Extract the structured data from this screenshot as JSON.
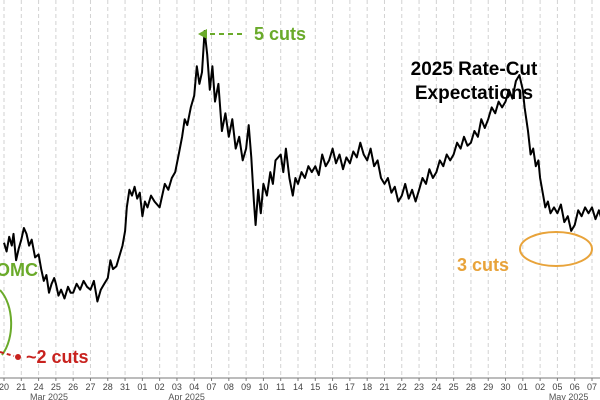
{
  "chart_data": {
    "type": "line",
    "title": [
      "2025 Rate-Cut",
      "Expectations"
    ],
    "xlabel": "",
    "ylabel": "",
    "grid": true,
    "legend": "none",
    "colors": {
      "line": "#000000",
      "green": "#6aaa2a",
      "red": "#c8221e",
      "orange": "#e8a33a",
      "grid": "#d2d2d2"
    },
    "x_tick_labels": [
      "20",
      "21",
      "24",
      "25",
      "26",
      "27",
      "28",
      "31",
      "01",
      "02",
      "03",
      "04",
      "07",
      "08",
      "09",
      "10",
      "11",
      "14",
      "15",
      "16",
      "17",
      "18",
      "21",
      "22",
      "23",
      "24",
      "25",
      "28",
      "29",
      "30",
      "01",
      "02",
      "05",
      "06",
      "07"
    ],
    "months": [
      {
        "label": "Mar 2025",
        "tick_index": 0
      },
      {
        "label": "Apr 2025",
        "tick_index": 8
      },
      {
        "label": "May 2025",
        "tick_index": 30
      }
    ],
    "annotations": [
      {
        "text": "5 cuts",
        "color": "green",
        "arrow": "left"
      },
      {
        "text": "OMC",
        "color": "green"
      },
      {
        "text": "~2 cuts",
        "color": "red"
      },
      {
        "text": "3 cuts",
        "color": "orange"
      }
    ],
    "ylim": [
      0,
      100
    ],
    "series": [
      {
        "values": [
          [
            0.0,
            28
          ],
          [
            0.15,
            25
          ],
          [
            0.3,
            30
          ],
          [
            0.45,
            27
          ],
          [
            0.55,
            31
          ],
          [
            0.7,
            22
          ],
          [
            0.85,
            26
          ],
          [
            1.0,
            29
          ],
          [
            1.15,
            33
          ],
          [
            1.3,
            31
          ],
          [
            1.45,
            27
          ],
          [
            1.6,
            29
          ],
          [
            1.8,
            23
          ],
          [
            2.0,
            24
          ],
          [
            2.15,
            19
          ],
          [
            2.3,
            15
          ],
          [
            2.45,
            17
          ],
          [
            2.6,
            11
          ],
          [
            2.75,
            14
          ],
          [
            2.9,
            16
          ],
          [
            3.0,
            14
          ],
          [
            3.15,
            10
          ],
          [
            3.3,
            12
          ],
          [
            3.5,
            9
          ],
          [
            3.7,
            13
          ],
          [
            3.85,
            11
          ],
          [
            4.0,
            11
          ],
          [
            4.2,
            14
          ],
          [
            4.4,
            12
          ],
          [
            4.6,
            15
          ],
          [
            4.8,
            13
          ],
          [
            5.0,
            12
          ],
          [
            5.2,
            15
          ],
          [
            5.4,
            8
          ],
          [
            5.6,
            12
          ],
          [
            5.8,
            14
          ],
          [
            6.0,
            16
          ],
          [
            6.15,
            22
          ],
          [
            6.3,
            19
          ],
          [
            6.5,
            20
          ],
          [
            6.7,
            24
          ],
          [
            6.85,
            27
          ],
          [
            7.0,
            32
          ],
          [
            7.1,
            40
          ],
          [
            7.25,
            46
          ],
          [
            7.4,
            44
          ],
          [
            7.55,
            47
          ],
          [
            7.7,
            43
          ],
          [
            7.85,
            45
          ],
          [
            8.0,
            37
          ],
          [
            8.15,
            42
          ],
          [
            8.3,
            40
          ],
          [
            8.5,
            44
          ],
          [
            8.7,
            42
          ],
          [
            9.0,
            40
          ],
          [
            9.15,
            44
          ],
          [
            9.3,
            48
          ],
          [
            9.5,
            46
          ],
          [
            9.7,
            50
          ],
          [
            9.9,
            52
          ],
          [
            10.1,
            58
          ],
          [
            10.3,
            64
          ],
          [
            10.45,
            70
          ],
          [
            10.6,
            68
          ],
          [
            10.8,
            74
          ],
          [
            11.0,
            78
          ],
          [
            11.15,
            88
          ],
          [
            11.3,
            82
          ],
          [
            11.45,
            86
          ],
          [
            11.6,
            100
          ],
          [
            11.75,
            92
          ],
          [
            11.9,
            80
          ],
          [
            12.05,
            88
          ],
          [
            12.2,
            76
          ],
          [
            12.4,
            82
          ],
          [
            12.6,
            66
          ],
          [
            12.8,
            72
          ],
          [
            13.0,
            64
          ],
          [
            13.2,
            70
          ],
          [
            13.4,
            60
          ],
          [
            13.6,
            64
          ],
          [
            13.8,
            56
          ],
          [
            14.0,
            60
          ],
          [
            14.15,
            68
          ],
          [
            14.3,
            57
          ],
          [
            14.45,
            42
          ],
          [
            14.55,
            34
          ],
          [
            14.7,
            46
          ],
          [
            14.85,
            38
          ],
          [
            15.0,
            48
          ],
          [
            15.2,
            44
          ],
          [
            15.4,
            52
          ],
          [
            15.55,
            48
          ],
          [
            15.7,
            56
          ],
          [
            16.0,
            58
          ],
          [
            16.15,
            52
          ],
          [
            16.3,
            60
          ],
          [
            16.5,
            50
          ],
          [
            16.7,
            44
          ],
          [
            16.85,
            50
          ],
          [
            17.0,
            48
          ],
          [
            17.2,
            52
          ],
          [
            17.4,
            50
          ],
          [
            17.6,
            54
          ],
          [
            17.8,
            52
          ],
          [
            18.0,
            54
          ],
          [
            18.2,
            51
          ],
          [
            18.4,
            58
          ],
          [
            18.6,
            54
          ],
          [
            18.8,
            56
          ],
          [
            19.0,
            60
          ],
          [
            19.2,
            55
          ],
          [
            19.4,
            58
          ],
          [
            19.6,
            53
          ],
          [
            19.8,
            57
          ],
          [
            20.0,
            55
          ],
          [
            20.2,
            59
          ],
          [
            20.4,
            57
          ],
          [
            20.6,
            62
          ],
          [
            20.8,
            58
          ],
          [
            21.0,
            56
          ],
          [
            21.2,
            60
          ],
          [
            21.4,
            54
          ],
          [
            21.6,
            56
          ],
          [
            21.8,
            50
          ],
          [
            22.0,
            48
          ],
          [
            22.2,
            50
          ],
          [
            22.4,
            45
          ],
          [
            22.6,
            47
          ],
          [
            22.8,
            42
          ],
          [
            23.0,
            44
          ],
          [
            23.2,
            48
          ],
          [
            23.4,
            43
          ],
          [
            23.6,
            46
          ],
          [
            23.8,
            42
          ],
          [
            24.0,
            46
          ],
          [
            24.2,
            50
          ],
          [
            24.4,
            48
          ],
          [
            24.6,
            53
          ],
          [
            24.8,
            50
          ],
          [
            25.0,
            52
          ],
          [
            25.2,
            56
          ],
          [
            25.4,
            54
          ],
          [
            25.6,
            58
          ],
          [
            25.8,
            56
          ],
          [
            26.0,
            58
          ],
          [
            26.2,
            62
          ],
          [
            26.4,
            60
          ],
          [
            26.6,
            64
          ],
          [
            26.8,
            61
          ],
          [
            27.0,
            62
          ],
          [
            27.2,
            66
          ],
          [
            27.4,
            64
          ],
          [
            27.6,
            70
          ],
          [
            27.8,
            67
          ],
          [
            28.0,
            70
          ],
          [
            28.2,
            74
          ],
          [
            28.4,
            72
          ],
          [
            28.6,
            76
          ],
          [
            28.8,
            74
          ],
          [
            29.0,
            76
          ],
          [
            29.2,
            80
          ],
          [
            29.4,
            77
          ],
          [
            29.6,
            83
          ],
          [
            29.8,
            85
          ],
          [
            30.0,
            80
          ],
          [
            30.1,
            74
          ],
          [
            30.2,
            70
          ],
          [
            30.3,
            66
          ],
          [
            30.45,
            58
          ],
          [
            30.6,
            60
          ],
          [
            30.75,
            54
          ],
          [
            30.9,
            56
          ],
          [
            31.0,
            50
          ],
          [
            31.15,
            45
          ],
          [
            31.3,
            40
          ],
          [
            31.45,
            42
          ],
          [
            31.6,
            38
          ],
          [
            31.8,
            40
          ],
          [
            32.0,
            38
          ],
          [
            32.2,
            41
          ],
          [
            32.4,
            35
          ],
          [
            32.6,
            37
          ],
          [
            32.8,
            32
          ],
          [
            33.0,
            34
          ],
          [
            33.2,
            39
          ],
          [
            33.4,
            37
          ],
          [
            33.6,
            40
          ],
          [
            33.8,
            38
          ],
          [
            34.0,
            40
          ],
          [
            34.2,
            36
          ],
          [
            34.4,
            39
          ],
          [
            34.6,
            35
          ],
          [
            34.8,
            37
          ]
        ]
      }
    ]
  }
}
